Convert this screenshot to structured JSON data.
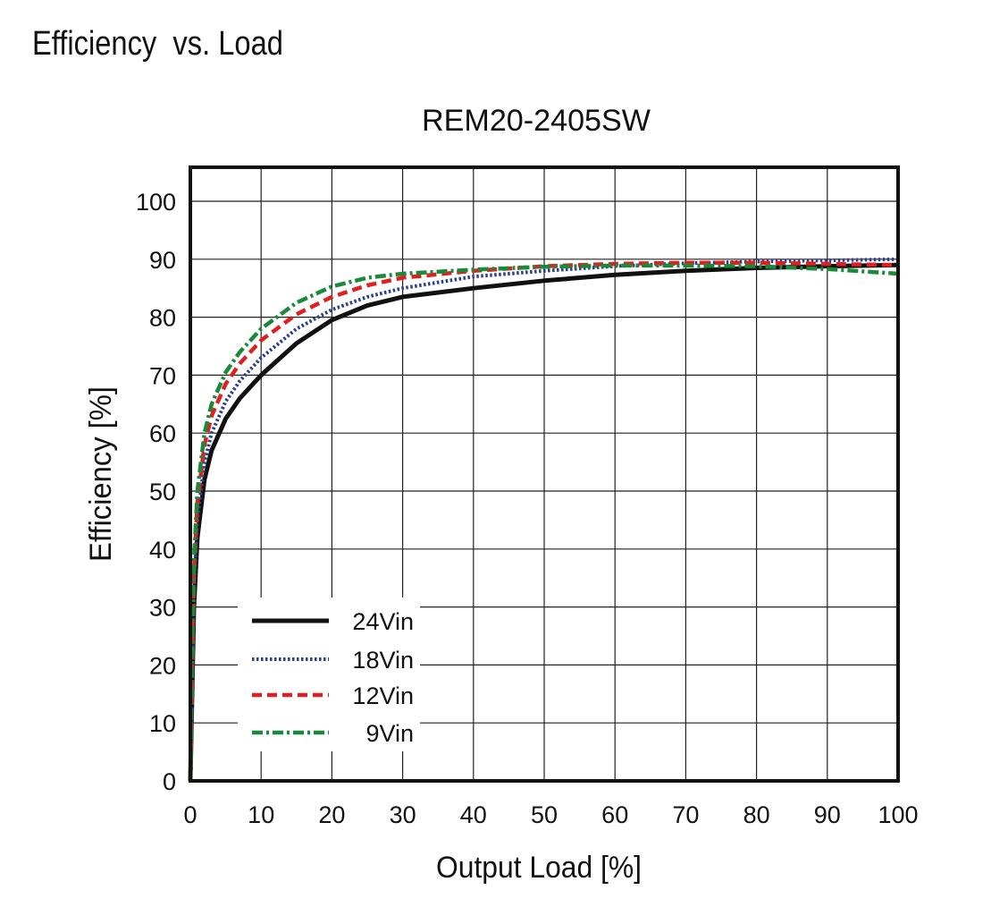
{
  "page": {
    "heading": "Efficiency  vs. Load"
  },
  "chart_data": {
    "type": "line",
    "title": "REM20-2405SW",
    "xlabel": "Output Load [%]",
    "ylabel": "Efficiency [%]",
    "xlim": [
      0,
      100
    ],
    "ylim": [
      0,
      105
    ],
    "grid": true,
    "legend_position": "bottom-left",
    "x_ticks": [
      "0",
      "10",
      "20",
      "30",
      "40",
      "50",
      "60",
      "70",
      "80",
      "90",
      "100"
    ],
    "y_ticks": [
      "0",
      "10",
      "20",
      "30",
      "40",
      "50",
      "60",
      "70",
      "80",
      "90",
      "100"
    ],
    "series": [
      {
        "name": "24Vin",
        "color": "#111111",
        "style": "solid",
        "x": [
          0,
          0.5,
          1,
          2,
          3,
          5,
          7,
          10,
          15,
          20,
          25,
          30,
          40,
          50,
          60,
          70,
          80,
          90,
          100
        ],
        "y": [
          0,
          30,
          42,
          52,
          57,
          62.5,
          66,
          70,
          75.5,
          79.5,
          82,
          83.5,
          85,
          86.3,
          87.3,
          88,
          88.5,
          88.8,
          89
        ]
      },
      {
        "name": "18Vin",
        "color": "#2a3f8f",
        "style": "dotted",
        "x": [
          0,
          0.5,
          1,
          2,
          3,
          5,
          7,
          10,
          15,
          20,
          25,
          30,
          40,
          50,
          60,
          70,
          80,
          90,
          100
        ],
        "y": [
          0,
          33,
          45,
          55,
          60,
          65.5,
          69,
          73,
          78,
          81.3,
          83.5,
          85,
          87,
          88,
          88.8,
          89.3,
          89.6,
          89.8,
          90
        ]
      },
      {
        "name": "12Vin",
        "color": "#e02020",
        "style": "dashed",
        "x": [
          0,
          0.5,
          1,
          2,
          3,
          5,
          7,
          10,
          15,
          20,
          25,
          30,
          40,
          50,
          60,
          70,
          80,
          90,
          100
        ],
        "y": [
          0,
          36,
          48,
          58,
          63,
          68.5,
          72,
          76,
          80.5,
          83.5,
          85.5,
          86.8,
          88,
          88.8,
          89.2,
          89.4,
          89.4,
          89.2,
          89
        ]
      },
      {
        "name": "9Vin",
        "color": "#1a8a3a",
        "style": "dashdot",
        "x": [
          0,
          0.5,
          1,
          2,
          3,
          5,
          7,
          10,
          15,
          20,
          25,
          30,
          40,
          50,
          60,
          70,
          80,
          90,
          100
        ],
        "y": [
          0,
          38,
          50,
          60,
          65,
          70.5,
          74,
          78,
          82.5,
          85.3,
          86.8,
          87.5,
          88.2,
          88.7,
          88.9,
          88.9,
          88.8,
          88.3,
          87.5
        ]
      }
    ]
  }
}
